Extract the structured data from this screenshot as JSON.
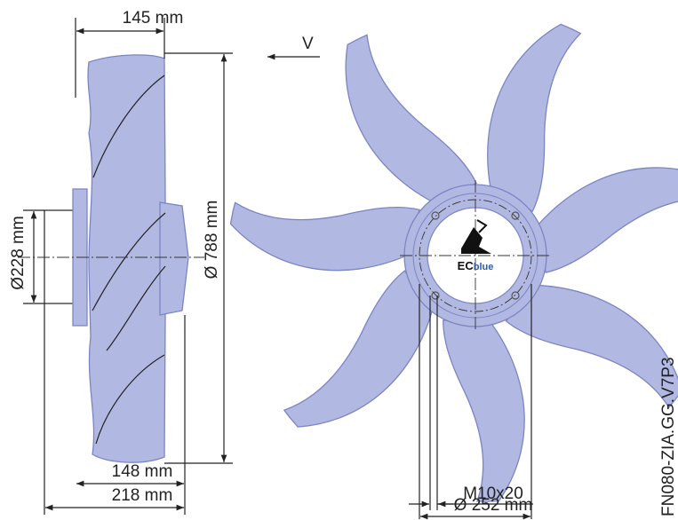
{
  "dimensions": {
    "depth_blades": "145 mm",
    "airflow": "V",
    "motor_diameter": "Ø228 mm",
    "fan_diameter": "Ø 788 mm",
    "depth_hub": "148 mm",
    "depth_total": "218 mm",
    "screw": "M10x20",
    "bolt_circle": "Ø 252 mm"
  },
  "logo": {
    "text_main": "EC",
    "text_accent": "blue"
  },
  "model": "FN080-ZIA.GG.V7P3"
}
